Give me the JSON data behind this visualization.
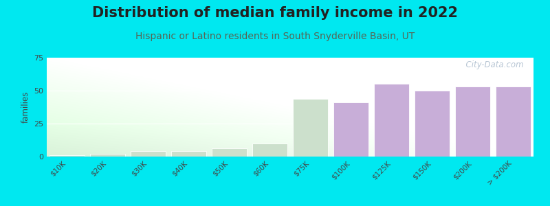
{
  "title": "Distribution of median family income in 2022",
  "subtitle": "Hispanic or Latino residents in South Snyderville Basin, UT",
  "categories": [
    "$10K",
    "$20K",
    "$30K",
    "$40K",
    "$50K",
    "$60K",
    "$75K",
    "$100K",
    "$125K",
    "$150K",
    "$200K",
    "> $200K"
  ],
  "values": [
    1,
    2,
    4,
    4,
    6,
    10,
    44,
    41,
    55,
    50,
    53,
    53
  ],
  "bar_color_purple": "#c8aed8",
  "bar_color_green": "#cce0cc",
  "green_bars_count": 7,
  "ylabel": "families",
  "ylim": [
    0,
    75
  ],
  "yticks": [
    0,
    25,
    50,
    75
  ],
  "background_color": "#00e8f0",
  "title_fontsize": 15,
  "subtitle_fontsize": 10,
  "title_color": "#222222",
  "subtitle_color": "#556655",
  "watermark": "  City-Data.com",
  "watermark_color": "#aabbcc"
}
